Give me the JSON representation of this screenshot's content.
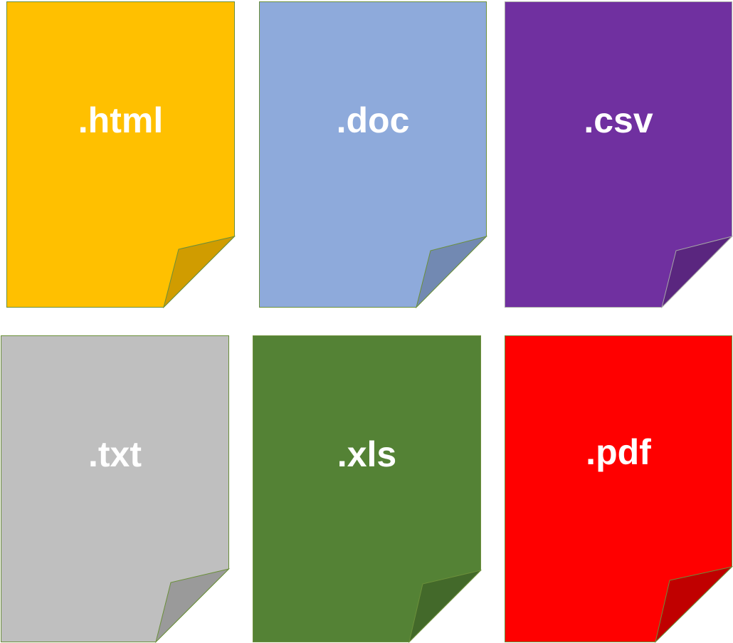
{
  "files": [
    {
      "label": ".html",
      "color": "#ffc000",
      "fold_color": "#d09c00",
      "border_color": "#6b8f3a",
      "icon": "file-html-icon"
    },
    {
      "label": ".doc",
      "color": "#8eaadb",
      "fold_color": "#7289b2",
      "border_color": "#6b8f3a",
      "icon": "file-doc-icon"
    },
    {
      "label": ".csv",
      "color": "#7030a0",
      "fold_color": "#5a267f",
      "border_color": "#a6a6a6",
      "icon": "file-csv-icon"
    },
    {
      "label": ".txt",
      "color": "#bfbfbf",
      "fold_color": "#9a9a9a",
      "border_color": "#6b8f3a",
      "icon": "file-txt-icon"
    },
    {
      "label": ".xls",
      "color": "#548235",
      "fold_color": "#43692a",
      "border_color": "#6b8f3a",
      "icon": "file-xls-icon"
    },
    {
      "label": ".pdf",
      "color": "#ff0000",
      "fold_color": "#c00000",
      "border_color": "#6b8f3a",
      "icon": "file-pdf-icon"
    }
  ]
}
